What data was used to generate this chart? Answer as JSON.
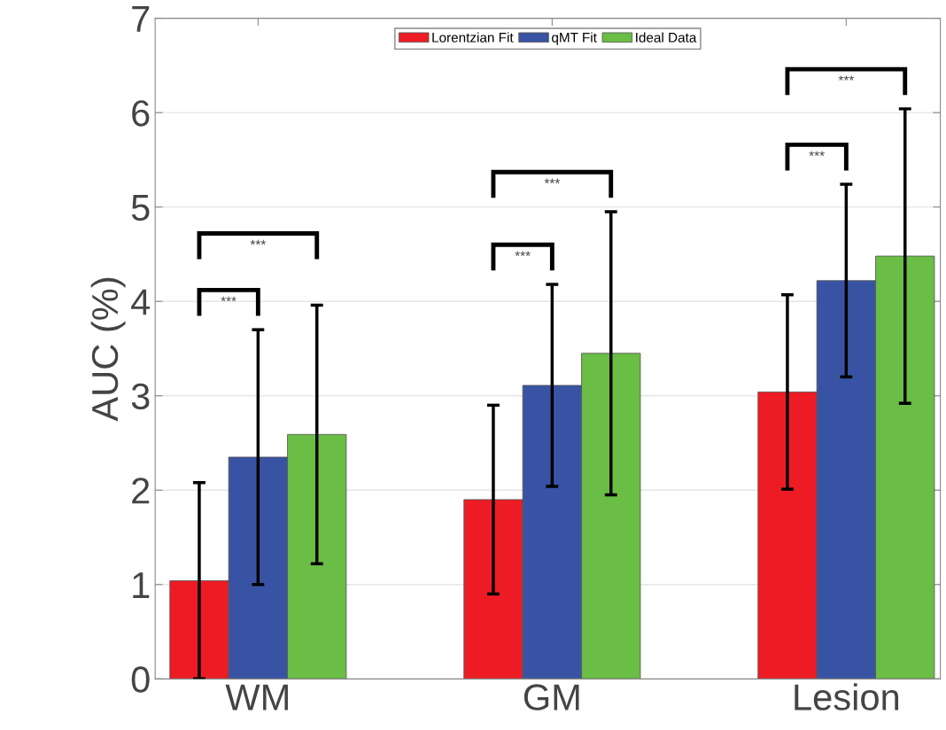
{
  "chart_data": {
    "type": "bar",
    "ylabel": "AUC (%)",
    "categories": [
      "WM",
      "GM",
      "Lesion"
    ],
    "series": [
      {
        "name": "Lorentzian Fit",
        "color": "#ed1c24",
        "values": [
          1.04,
          1.9,
          3.04
        ],
        "errors": [
          1.04,
          1.0,
          1.03
        ]
      },
      {
        "name": "qMT Fit",
        "color": "#3953a4",
        "values": [
          2.35,
          3.11,
          4.22
        ],
        "errors": [
          1.35,
          1.07,
          1.02
        ]
      },
      {
        "name": "Ideal Data",
        "color": "#6abd45",
        "values": [
          2.59,
          3.45,
          4.48
        ],
        "errors": [
          1.37,
          1.5,
          1.56
        ]
      }
    ],
    "ylim": [
      0,
      7
    ],
    "yticks": [
      0,
      1,
      2,
      3,
      4,
      5,
      6,
      7
    ],
    "grid": "y",
    "legend": "top",
    "annotations": [
      "***",
      "***",
      "***",
      "***",
      "***",
      "***"
    ]
  }
}
